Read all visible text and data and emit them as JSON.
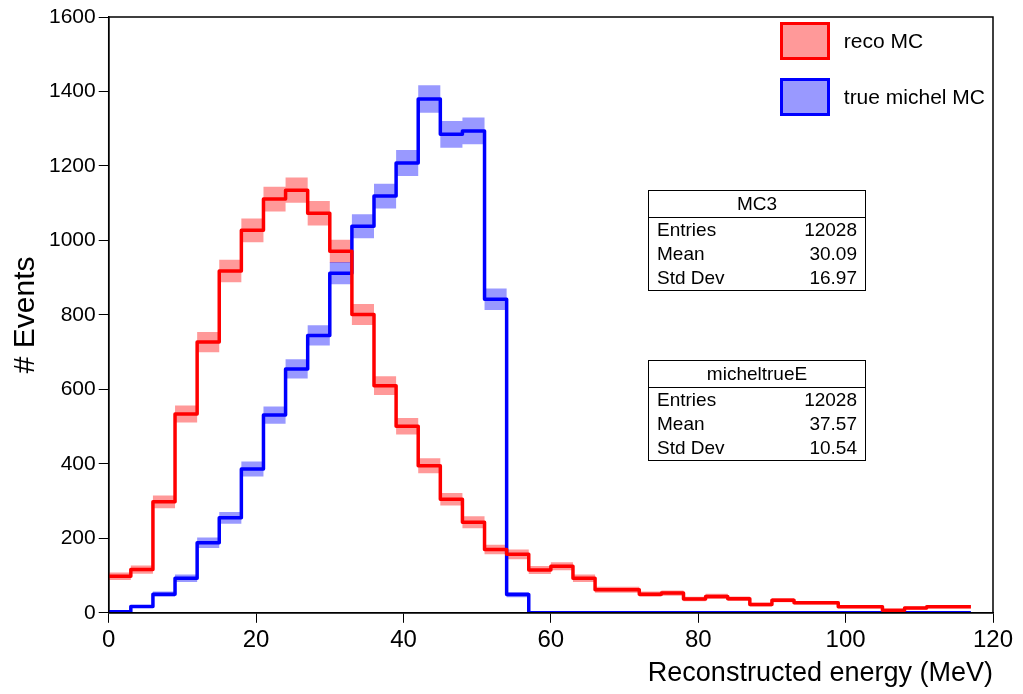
{
  "chart_data": {
    "type": "step",
    "xlabel": "Reconstructed energy (MeV)",
    "ylabel": "# Events",
    "x": [
      0,
      3,
      6,
      9,
      12,
      15,
      18,
      21,
      24,
      27,
      30,
      33,
      36,
      39,
      42,
      45,
      48,
      51,
      54,
      57,
      60,
      63,
      66,
      69,
      72,
      75,
      78,
      81,
      84,
      87,
      90,
      93,
      96,
      99,
      102,
      105,
      108,
      111,
      114,
      117
    ],
    "series": [
      {
        "name": "reco MC",
        "color": "#ff0000",
        "values": [
          98,
          116,
          298,
          534,
          727,
          918,
          1027,
          1111,
          1135,
          1073,
          971,
          801,
          610,
          501,
          395,
          305,
          243,
          170,
          157,
          115,
          125,
          93,
          62,
          62,
          50,
          53,
          37,
          44,
          38,
          22,
          34,
          27,
          27,
          16,
          16,
          7,
          13,
          16,
          16,
          16
        ],
        "lower": [
          88,
          105,
          281,
          511,
          700,
          888,
          995,
          1078,
          1101,
          1040,
          940,
          773,
          585,
          479,
          375,
          288,
          227,
          157,
          144,
          104,
          114,
          83,
          54,
          54,
          43,
          46,
          31,
          37,
          32,
          17,
          28,
          22,
          22,
          12,
          12,
          4,
          9,
          12,
          12,
          12
        ],
        "upper": [
          108,
          127,
          315,
          557,
          754,
          948,
          1059,
          1144,
          1169,
          1106,
          1002,
          829,
          635,
          523,
          415,
          322,
          259,
          183,
          170,
          126,
          136,
          103,
          70,
          70,
          57,
          60,
          43,
          51,
          44,
          27,
          40,
          32,
          32,
          20,
          20,
          10,
          17,
          20,
          20,
          20
        ]
      },
      {
        "name": "true michel MC",
        "color": "#0000ff",
        "values": [
          3,
          17,
          50,
          93,
          188,
          255,
          386,
          531,
          655,
          745,
          912,
          1038,
          1119,
          1208,
          1380,
          1285,
          1294,
          842,
          49,
          0,
          0,
          0,
          0,
          0,
          0,
          0,
          0,
          0,
          0,
          0,
          0,
          0,
          0,
          0,
          0,
          0,
          0,
          0,
          0,
          0
        ],
        "lower": [
          1,
          13,
          43,
          83,
          174,
          239,
          366,
          508,
          629,
          718,
          882,
          1006,
          1086,
          1173,
          1343,
          1249,
          1258,
          813,
          42,
          0,
          0,
          0,
          0,
          0,
          0,
          0,
          0,
          0,
          0,
          0,
          0,
          0,
          0,
          0,
          0,
          0,
          0,
          0,
          0,
          0
        ],
        "upper": [
          5,
          21,
          57,
          103,
          202,
          271,
          406,
          554,
          681,
          772,
          942,
          1070,
          1152,
          1243,
          1417,
          1321,
          1330,
          871,
          56,
          0,
          0,
          0,
          0,
          0,
          0,
          0,
          0,
          0,
          0,
          0,
          0,
          0,
          0,
          0,
          0,
          0,
          0,
          0,
          0,
          0
        ]
      }
    ],
    "xlim": [
      0,
      120
    ],
    "xticks": [
      0,
      20,
      40,
      60,
      80,
      100,
      120
    ],
    "ylim": [
      0,
      1600
    ],
    "yticks": [
      0,
      200,
      400,
      600,
      800,
      1000,
      1200,
      1400,
      1600
    ],
    "grid": false,
    "legend": "top right",
    "annotations": [
      "MC3\nEntries\t12028\nMean\t30.09\nStd Dev\t16.97",
      "micheltrueE\nEntries\t12028\nMean\t37.57\nStd Dev\t10.54"
    ]
  }
}
